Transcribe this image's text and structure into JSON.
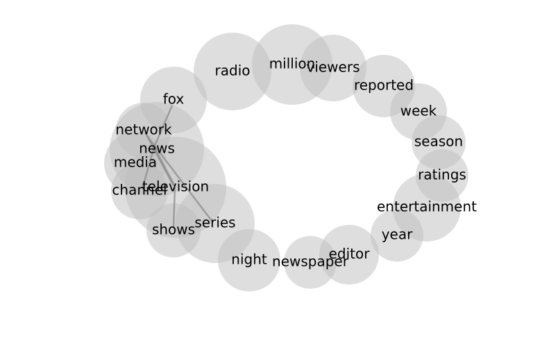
{
  "chart_data": {
    "type": "bubble-network",
    "colors": {
      "bubble": "#bdbdbd",
      "edge": "#8a8a8a",
      "text": "#000000",
      "background": "#ffffff"
    },
    "nodes": [
      {
        "id": "radio",
        "label": "radio"
      },
      {
        "id": "million",
        "label": "million"
      },
      {
        "id": "viewers",
        "label": "viewers"
      },
      {
        "id": "reported",
        "label": "reported"
      },
      {
        "id": "week",
        "label": "week"
      },
      {
        "id": "season",
        "label": "season"
      },
      {
        "id": "ratings",
        "label": "ratings"
      },
      {
        "id": "entertainment",
        "label": "entertainment"
      },
      {
        "id": "year",
        "label": "year"
      },
      {
        "id": "editor",
        "label": "editor"
      },
      {
        "id": "newspaper",
        "label": "newspaper"
      },
      {
        "id": "night",
        "label": "night"
      },
      {
        "id": "series",
        "label": "series"
      },
      {
        "id": "shows",
        "label": "shows"
      },
      {
        "id": "television",
        "label": "television"
      },
      {
        "id": "channel",
        "label": "channel"
      },
      {
        "id": "media",
        "label": "media"
      },
      {
        "id": "news",
        "label": "news"
      },
      {
        "id": "network",
        "label": "network"
      },
      {
        "id": "fox",
        "label": "fox"
      }
    ],
    "edges": [
      [
        "fox",
        "news"
      ],
      [
        "news",
        "channel"
      ],
      [
        "network",
        "television"
      ],
      [
        "network",
        "series"
      ],
      [
        "news",
        "television"
      ],
      [
        "television",
        "shows"
      ]
    ]
  }
}
